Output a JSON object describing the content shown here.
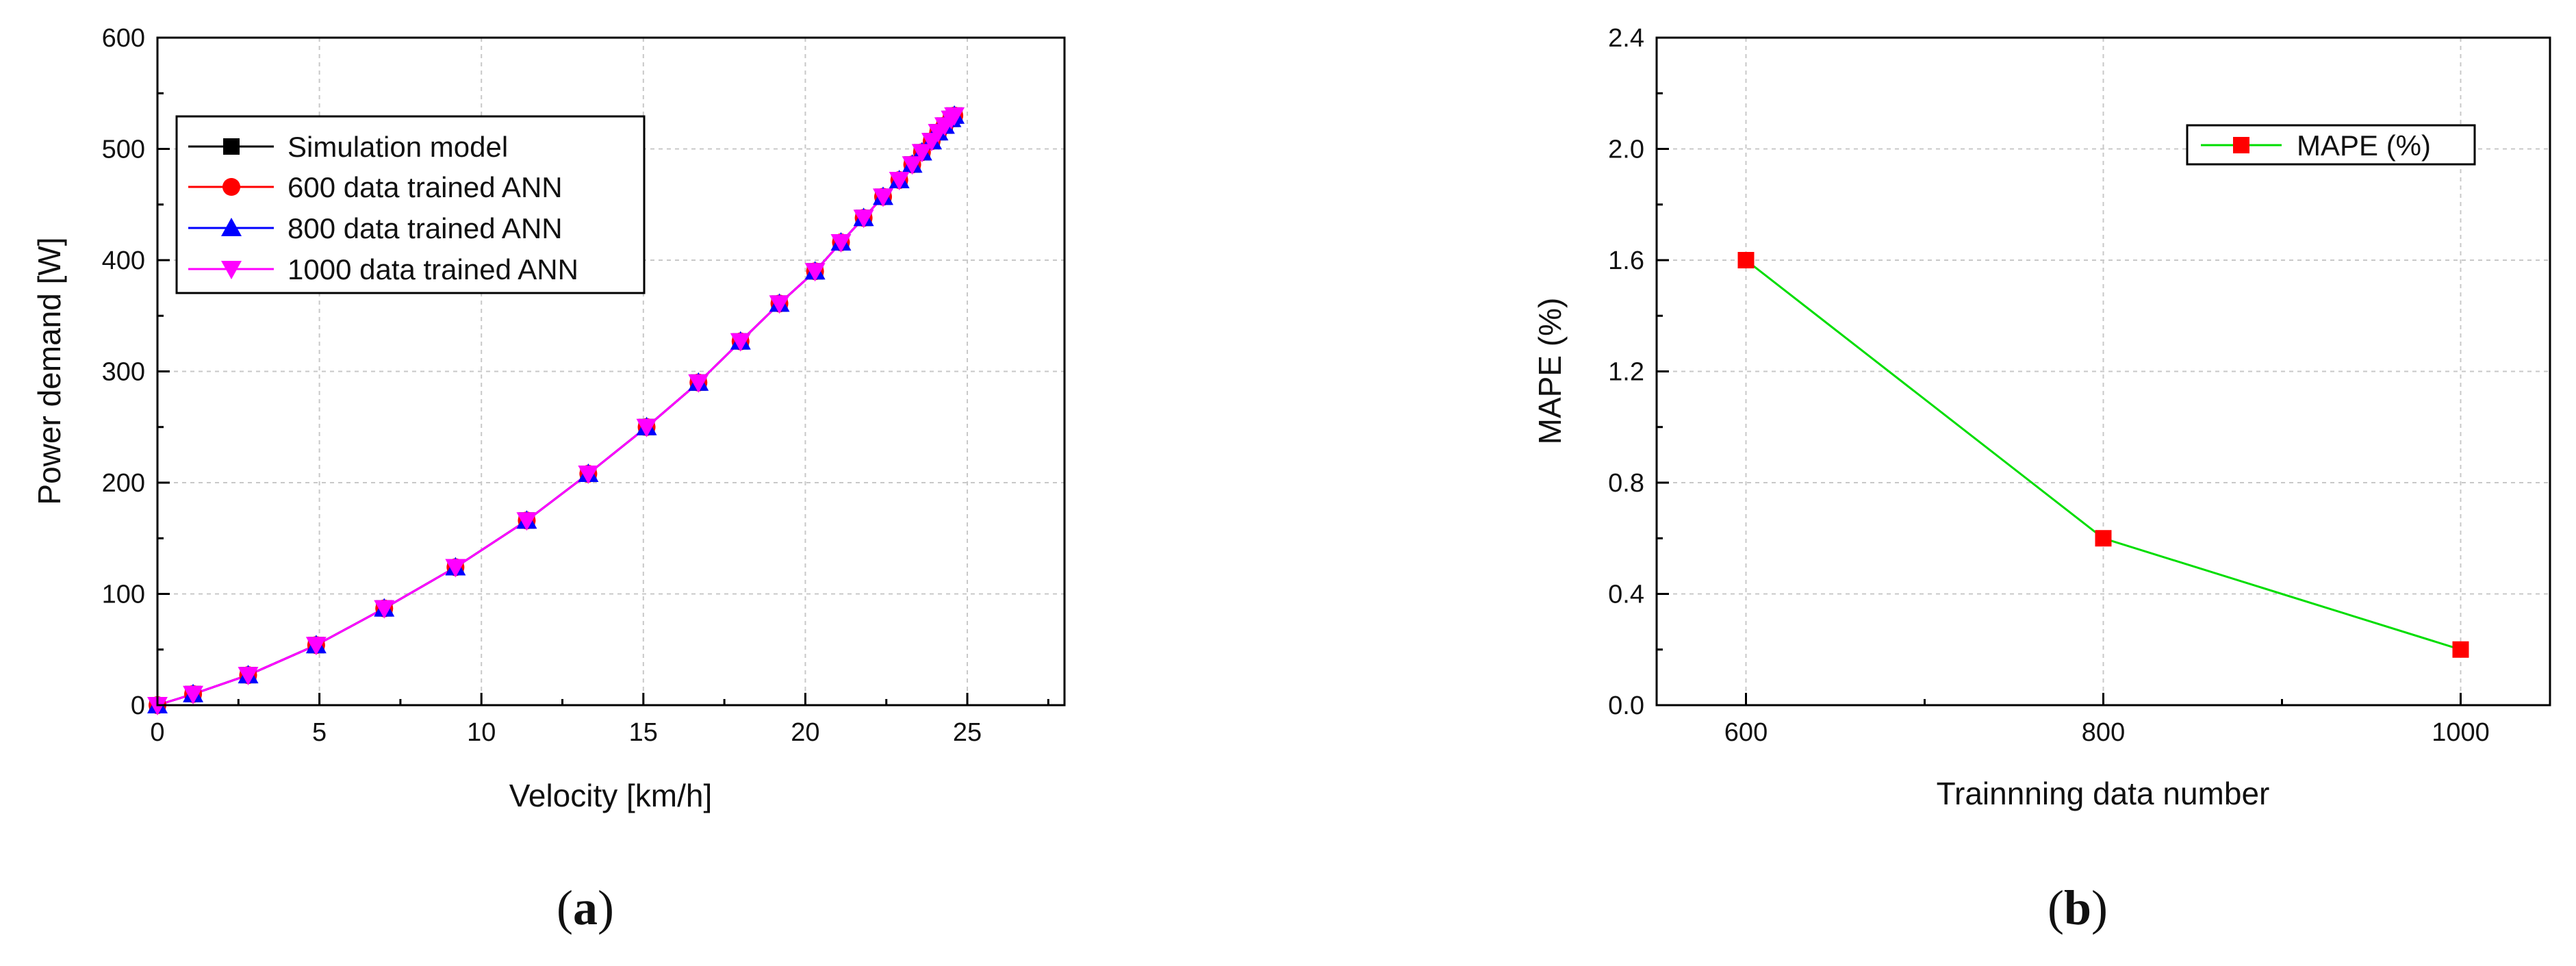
{
  "chart_data": [
    {
      "type": "line",
      "panel_label": {
        "open": "(",
        "letter": "a",
        "close": ")"
      },
      "xlabel": "Velocity [km/h]",
      "ylabel": "Power demand [W]",
      "xlim": [
        0,
        28
      ],
      "ylim": [
        0,
        600
      ],
      "xticks": [
        0,
        5,
        10,
        15,
        20,
        25
      ],
      "yticks": [
        0,
        100,
        200,
        300,
        400,
        500,
        600
      ],
      "grid": true,
      "legend_position": "top-left",
      "x": [
        0,
        1.1,
        2.8,
        4.9,
        7.0,
        9.2,
        11.4,
        13.3,
        15.1,
        16.7,
        18.0,
        19.2,
        20.3,
        21.1,
        21.8,
        22.4,
        22.9,
        23.3,
        23.6,
        23.9,
        24.1,
        24.3,
        24.5,
        24.6
      ],
      "series": [
        {
          "name": "Simulation model",
          "color": "#000000",
          "marker": "square",
          "values": [
            0,
            10,
            27,
            54,
            87,
            124,
            166,
            208,
            250,
            290,
            327,
            361,
            390,
            416,
            438,
            457,
            472,
            486,
            497,
            507,
            515,
            521,
            527,
            530
          ]
        },
        {
          "name": "600 data trained ANN",
          "color": "#ff0000",
          "marker": "circle",
          "values": [
            0,
            10,
            27,
            54,
            87,
            124,
            166,
            208,
            250,
            290,
            327,
            361,
            390,
            416,
            438,
            457,
            472,
            486,
            497,
            507,
            515,
            521,
            527,
            530
          ]
        },
        {
          "name": "800 data trained ANN",
          "color": "#0000ff",
          "marker": "triangle-up",
          "values": [
            0,
            10,
            27,
            54,
            87,
            124,
            166,
            208,
            250,
            290,
            327,
            361,
            390,
            416,
            438,
            457,
            472,
            486,
            497,
            507,
            515,
            521,
            527,
            530
          ]
        },
        {
          "name": "1000 data trained ANN",
          "color": "#ff00ff",
          "marker": "triangle-down",
          "values": [
            0,
            10,
            27,
            54,
            87,
            124,
            166,
            208,
            250,
            290,
            327,
            361,
            390,
            416,
            438,
            457,
            472,
            486,
            497,
            507,
            515,
            521,
            527,
            530
          ]
        }
      ]
    },
    {
      "type": "line",
      "panel_label": {
        "open": "(",
        "letter": "b",
        "close": ")"
      },
      "xlabel": "Trainnning data number",
      "ylabel": "MAPE (%)",
      "xlim": [
        550,
        1050
      ],
      "ylim": [
        0.0,
        2.4
      ],
      "xticks": [
        600,
        800,
        1000
      ],
      "yticks": [
        "0.0",
        "0.4",
        "0.8",
        "1.2",
        "1.6",
        "2.0",
        "2.4"
      ],
      "grid": true,
      "legend_position": "top-right",
      "x": [
        600,
        800,
        1000
      ],
      "series": [
        {
          "name": "MAPE (%)",
          "color": "#00dd00",
          "marker_color": "#ff0000",
          "marker": "square",
          "values": [
            1.6,
            0.6,
            0.2
          ]
        }
      ]
    }
  ]
}
